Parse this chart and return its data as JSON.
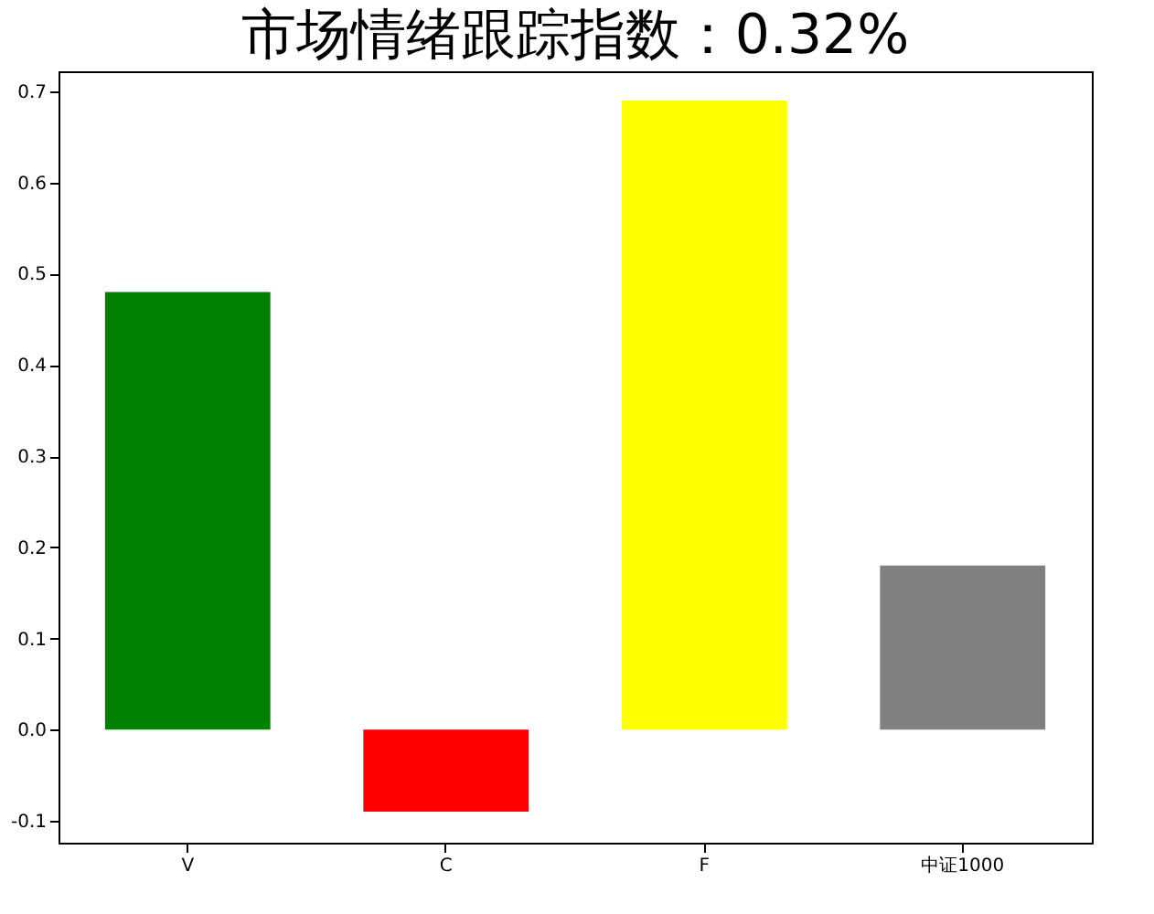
{
  "chart_data": {
    "type": "bar",
    "title": "市场情绪跟踪指数：0.32%",
    "categories": [
      "V",
      "C",
      "F",
      "中证1000"
    ],
    "values": [
      0.48,
      -0.09,
      0.69,
      0.18
    ],
    "colors": [
      "#008000",
      "#ff0000",
      "#ffff00",
      "#808080"
    ],
    "ylim": [
      -0.124,
      0.722
    ],
    "yticks": [
      -0.1,
      {
        "value": 0,
        "label": "0.0"
      },
      0.1,
      0.2,
      0.3,
      0.4,
      0.5,
      0.6,
      0.7
    ],
    "grid": false
  }
}
